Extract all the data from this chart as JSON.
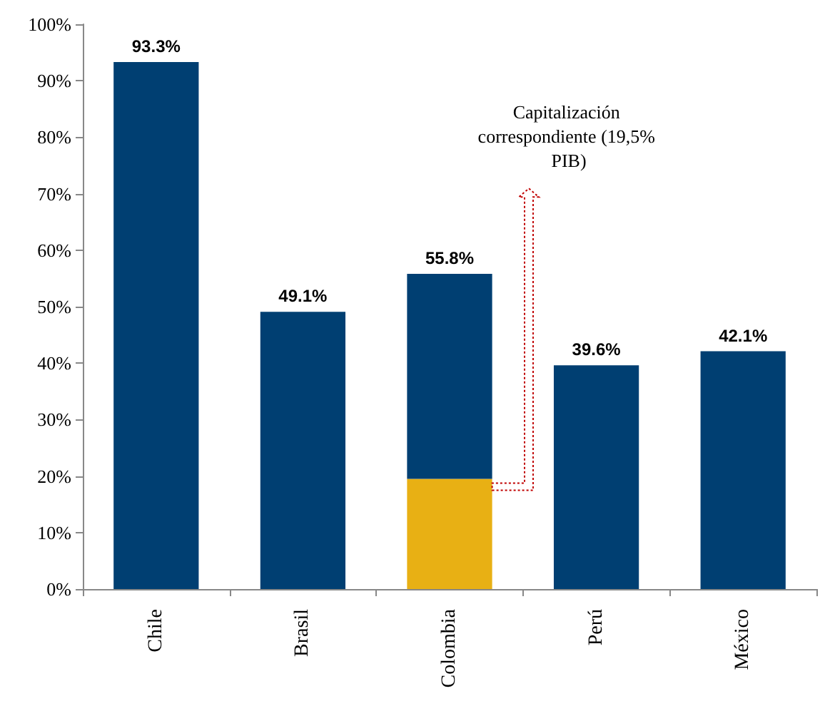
{
  "chart_data": {
    "type": "bar",
    "stacked": true,
    "categories": [
      "Chile",
      "Brasil",
      "Colombia",
      "Perú",
      "México"
    ],
    "series": [
      {
        "color": "#e8b014",
        "values": [
          null,
          null,
          19.5,
          null,
          null
        ]
      },
      {
        "color": "#003f72",
        "values": [
          93.3,
          49.1,
          36.3,
          39.6,
          42.1
        ]
      }
    ],
    "totals": [
      "93.3%",
      "49.1%",
      "55.8%",
      "39.6%",
      "42.1%"
    ],
    "ylim": [
      0,
      100
    ],
    "yticks": [
      {
        "value": 0,
        "label": "0%"
      },
      {
        "value": 10,
        "label": "10%"
      },
      {
        "value": 20,
        "label": "20%"
      },
      {
        "value": 30,
        "label": "30%"
      },
      {
        "value": 40,
        "label": "40%"
      },
      {
        "value": 50,
        "label": "50%"
      },
      {
        "value": 60,
        "label": "60%"
      },
      {
        "value": 70,
        "label": "70%"
      },
      {
        "value": 80,
        "label": "80%"
      },
      {
        "value": 90,
        "label": "90%"
      },
      {
        "value": 100,
        "label": "100%"
      }
    ],
    "annotations": [
      "Capitalización correspondiente (19,5% PIB)"
    ],
    "grid": false
  }
}
